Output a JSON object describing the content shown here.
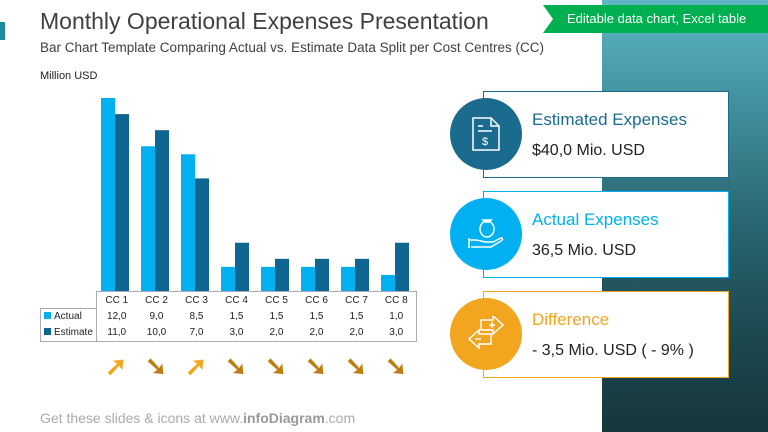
{
  "header": {
    "title": "Monthly Operational Expenses Presentation",
    "subtitle": "Bar Chart Template Comparing Actual vs. Estimate Data Split per Cost Centres (CC)",
    "banner": "Editable data chart, Excel table"
  },
  "chart_data": {
    "type": "bar",
    "ylabel": "Million USD",
    "categories": [
      "CC 1",
      "CC 2",
      "CC 3",
      "CC 4",
      "CC 5",
      "CC 6",
      "CC 7",
      "CC 8"
    ],
    "series": [
      {
        "name": "Actual",
        "values": [
          12.0,
          9.0,
          8.5,
          1.5,
          1.5,
          1.5,
          1.5,
          1.0
        ],
        "labels": [
          "12,0",
          "9,0",
          "8,5",
          "1,5",
          "1,5",
          "1,5",
          "1,5",
          "1,0"
        ],
        "color": "#00b0f0"
      },
      {
        "name": "Estimate",
        "values": [
          11.0,
          10.0,
          7.0,
          3.0,
          2.0,
          2.0,
          2.0,
          3.0
        ],
        "labels": [
          "11,0",
          "10,0",
          "7,0",
          "3,0",
          "2,0",
          "2,0",
          "2,0",
          "3,0"
        ],
        "color": "#0e6590"
      }
    ],
    "ylim": [
      0,
      12
    ],
    "grid": false,
    "legend": "data-table"
  },
  "trend_arrows": [
    "up",
    "down",
    "up",
    "down",
    "down",
    "down",
    "down",
    "down"
  ],
  "colors": {
    "up": "#f2a51f",
    "down": "#c07d0e"
  },
  "cards": [
    {
      "title": "Estimated Expenses",
      "value": "$40,0 Mio. USD",
      "color": "#1b6b8e",
      "icon": "invoice-dollar-icon"
    },
    {
      "title": "Actual Expenses",
      "value": "36,5 Mio. USD",
      "color": "#00b0f0",
      "icon": "money-bag-hand-icon"
    },
    {
      "title": "Difference",
      "value": "- 3,5 Mio. USD ( - 9% )",
      "color": "#f2a51f",
      "icon": "exchange-plus-minus-icon"
    }
  ],
  "footer": {
    "pre": "Get these slides & icons at www.",
    "brand": "infoDiagram",
    "post": ".com"
  }
}
